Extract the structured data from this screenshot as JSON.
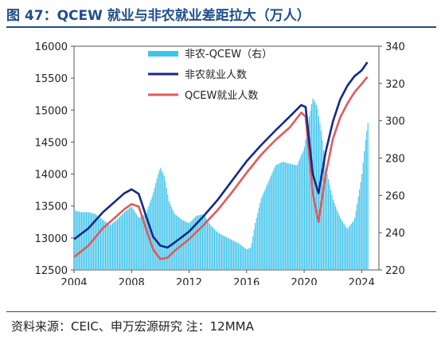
{
  "title": "图 47：QCEW 就业与非农就业差距拉大（万人）",
  "source": "资料来源：CEIC、申万宏源研究    注：12MMA",
  "colors": {
    "title": "#1f4e8c",
    "rule": "#1f4e8c",
    "bar": "#40c4ec",
    "nfp": "#14298a",
    "qcew": "#e05a5a"
  },
  "chart_data": {
    "type": "bar+line",
    "x_ticks": [
      "2004",
      "2008",
      "2012",
      "2016",
      "2020",
      "2024"
    ],
    "xlim": [
      2004,
      2025.2
    ],
    "y_left": {
      "ticks": [
        "12500",
        "13000",
        "13500",
        "14000",
        "14500",
        "15000",
        "15500",
        "16000"
      ],
      "lim": [
        12500,
        16000
      ]
    },
    "y_right": {
      "ticks": [
        "220",
        "240",
        "260",
        "280",
        "300",
        "320",
        "340"
      ],
      "lim": [
        220,
        340
      ]
    },
    "legend": [
      "非农-QCEW（右）",
      "非农就业人数",
      "QCEW就业人数"
    ],
    "series": [
      {
        "name": "非农-QCEW（右）",
        "axis": "right",
        "type": "bar",
        "points": [
          [
            2004,
            252
          ],
          [
            2004.5,
            251
          ],
          [
            2005,
            251
          ],
          [
            2005.5,
            250
          ],
          [
            2006,
            247
          ],
          [
            2006.5,
            244
          ],
          [
            2007,
            247
          ],
          [
            2007.5,
            251
          ],
          [
            2008,
            254
          ],
          [
            2008.5,
            248
          ],
          [
            2009,
            250
          ],
          [
            2009.5,
            261
          ],
          [
            2009.8,
            270
          ],
          [
            2010,
            275
          ],
          [
            2010.3,
            270
          ],
          [
            2010.6,
            257
          ],
          [
            2011,
            250
          ],
          [
            2011.5,
            247
          ],
          [
            2012,
            245
          ],
          [
            2012.5,
            249
          ],
          [
            2013,
            250
          ],
          [
            2013.5,
            244
          ],
          [
            2014,
            240
          ],
          [
            2014.5,
            238
          ],
          [
            2015,
            236
          ],
          [
            2015.5,
            234
          ],
          [
            2016,
            231
          ],
          [
            2016.3,
            232
          ],
          [
            2016.6,
            245
          ],
          [
            2017,
            258
          ],
          [
            2017.5,
            267
          ],
          [
            2018,
            276
          ],
          [
            2018.5,
            278
          ],
          [
            2019,
            277
          ],
          [
            2019.5,
            276
          ],
          [
            2020,
            285
          ],
          [
            2020.3,
            300
          ],
          [
            2020.6,
            312
          ],
          [
            2020.9,
            308
          ],
          [
            2021.2,
            294
          ],
          [
            2021.5,
            275
          ],
          [
            2022,
            258
          ],
          [
            2022.5,
            248
          ],
          [
            2023,
            242
          ],
          [
            2023.5,
            247
          ],
          [
            2024,
            270
          ],
          [
            2024.3,
            292
          ],
          [
            2024.5,
            302
          ]
        ]
      },
      {
        "name": "非农就业人数",
        "axis": "left",
        "type": "line",
        "points": [
          [
            2004,
            12980
          ],
          [
            2005,
            13150
          ],
          [
            2006,
            13400
          ],
          [
            2007,
            13600
          ],
          [
            2007.5,
            13700
          ],
          [
            2008,
            13760
          ],
          [
            2008.5,
            13690
          ],
          [
            2009,
            13350
          ],
          [
            2009.5,
            13020
          ],
          [
            2010,
            12880
          ],
          [
            2010.5,
            12850
          ],
          [
            2011,
            12930
          ],
          [
            2012,
            13100
          ],
          [
            2013,
            13340
          ],
          [
            2014,
            13600
          ],
          [
            2015,
            13900
          ],
          [
            2016,
            14200
          ],
          [
            2017,
            14450
          ],
          [
            2018,
            14680
          ],
          [
            2019,
            14900
          ],
          [
            2019.8,
            15080
          ],
          [
            2020.1,
            15050
          ],
          [
            2020.6,
            14000
          ],
          [
            2021,
            13700
          ],
          [
            2021.5,
            14350
          ],
          [
            2022,
            14820
          ],
          [
            2022.5,
            15160
          ],
          [
            2023,
            15380
          ],
          [
            2023.5,
            15530
          ],
          [
            2024,
            15620
          ],
          [
            2024.4,
            15750
          ]
        ]
      },
      {
        "name": "QCEW就业人数",
        "axis": "left",
        "type": "line",
        "points": [
          [
            2004,
            12700
          ],
          [
            2005,
            12880
          ],
          [
            2006,
            13150
          ],
          [
            2007,
            13350
          ],
          [
            2007.5,
            13450
          ],
          [
            2008,
            13530
          ],
          [
            2008.5,
            13490
          ],
          [
            2009,
            13150
          ],
          [
            2009.5,
            12820
          ],
          [
            2010,
            12670
          ],
          [
            2010.5,
            12690
          ],
          [
            2011,
            12800
          ],
          [
            2012,
            12980
          ],
          [
            2013,
            13200
          ],
          [
            2014,
            13440
          ],
          [
            2015,
            13720
          ],
          [
            2016,
            14020
          ],
          [
            2017,
            14300
          ],
          [
            2018,
            14530
          ],
          [
            2019,
            14730
          ],
          [
            2019.8,
            14960
          ],
          [
            2020.1,
            14900
          ],
          [
            2020.6,
            13700
          ],
          [
            2021,
            13250
          ],
          [
            2021.5,
            14000
          ],
          [
            2022,
            14550
          ],
          [
            2022.5,
            14880
          ],
          [
            2023,
            15100
          ],
          [
            2023.5,
            15280
          ],
          [
            2024,
            15410
          ],
          [
            2024.4,
            15520
          ]
        ]
      }
    ]
  }
}
